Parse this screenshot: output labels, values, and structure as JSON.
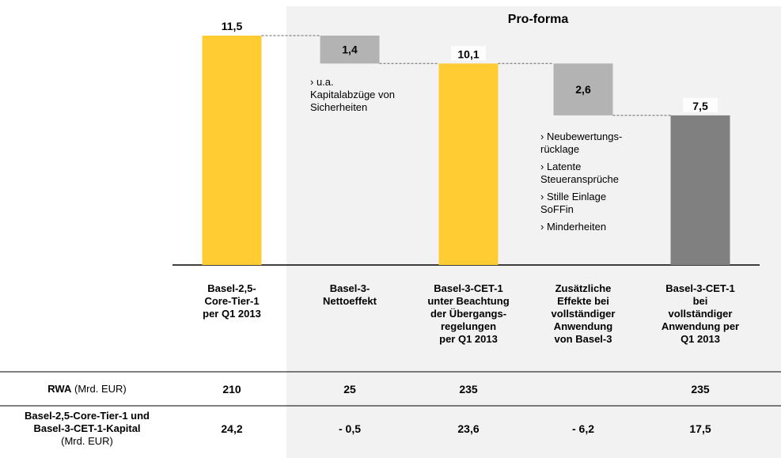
{
  "chart_data": {
    "type": "waterfall",
    "title": "Pro-forma",
    "categories": [
      "Basel-2,5-\nCore-Tier-1\nper Q1 2013",
      "Basel-3-\nNettoeffekt",
      "Basel-3-CET-1\nunter Beachtung\nder Übergangs-\nregelungen\nper Q1 2013",
      "Zusätzliche\nEffekte bei\nvollständiger\nAnwendung\nvon Basel-3",
      "Basel-3-CET-1 bei\nvollständiger\nAnwendung per\nQ1 2013"
    ],
    "values": [
      11.5,
      -1.4,
      10.1,
      -2.6,
      7.5
    ],
    "value_labels": [
      "11,5",
      "1,4",
      "10,1",
      "2,6",
      "7,5"
    ],
    "measures": [
      "total",
      "relative",
      "total",
      "relative",
      "total"
    ],
    "colors": [
      "#ffcc33",
      "#b3b3b3",
      "#ffcc33",
      "#b3b3b3",
      "#808080"
    ],
    "annotations": [
      {
        "items": [
          "› u.a.\nKapitalabzüge von\nSicherheiten"
        ]
      },
      {
        "items": [
          "› Neubewertungs-\nrücklage",
          "› Latente\nSteueransprüche",
          "› Stille Einlage\nSoFFin",
          "› Minderheiten"
        ]
      }
    ]
  },
  "table": {
    "rows": [
      {
        "label": "RWA",
        "unit": "(Mrd. EUR)",
        "cells": [
          "210",
          "25",
          "235",
          null,
          "235"
        ]
      },
      {
        "label": "Basel-2,5-Core-Tier-1 und\nBasel-3-CET-1-Kapital",
        "unit": "(Mrd. EUR)",
        "cells": [
          "24,2",
          "- 0,5",
          "23,6",
          "- 6,2",
          "17,5"
        ]
      }
    ]
  }
}
